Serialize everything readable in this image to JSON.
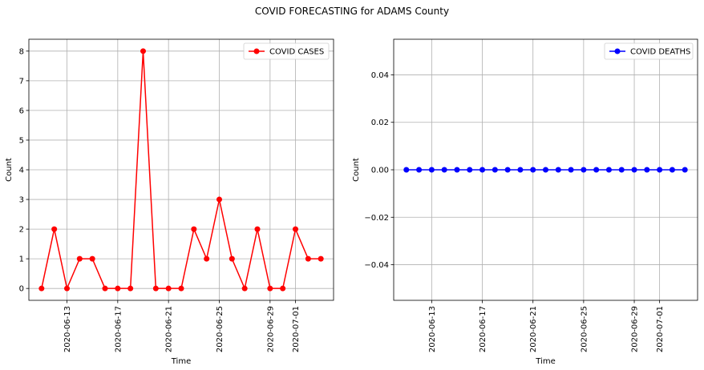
{
  "figure": {
    "title": "COVID FORECASTING for ADAMS County"
  },
  "chart_data": [
    {
      "type": "line",
      "xlabel": "Time",
      "ylabel": "Count",
      "x": [
        "2020-06-11",
        "2020-06-12",
        "2020-06-13",
        "2020-06-14",
        "2020-06-15",
        "2020-06-16",
        "2020-06-17",
        "2020-06-18",
        "2020-06-19",
        "2020-06-20",
        "2020-06-21",
        "2020-06-22",
        "2020-06-23",
        "2020-06-24",
        "2020-06-25",
        "2020-06-26",
        "2020-06-27",
        "2020-06-28",
        "2020-06-29",
        "2020-06-30",
        "2020-07-01",
        "2020-07-02",
        "2020-07-03"
      ],
      "series": [
        {
          "name": "COVID CASES",
          "color": "#ff0000",
          "values": [
            0,
            2,
            0,
            1,
            1,
            0,
            0,
            0,
            8,
            0,
            0,
            0,
            2,
            1,
            3,
            1,
            0,
            2,
            0,
            0,
            2,
            1,
            1
          ]
        }
      ],
      "xticks": [
        "2020-06-13",
        "2020-06-17",
        "2020-06-21",
        "2020-06-25",
        "2020-06-29",
        "2020-07-01"
      ],
      "xlim": [
        "2020-06-10",
        "2020-07-04"
      ],
      "yticks": [
        0,
        1,
        2,
        3,
        4,
        5,
        6,
        7,
        8
      ],
      "ylim": [
        -0.4,
        8.4
      ],
      "grid": true,
      "legend": "upper-right"
    },
    {
      "type": "line",
      "xlabel": "Time",
      "ylabel": "Count",
      "x": [
        "2020-06-11",
        "2020-06-12",
        "2020-06-13",
        "2020-06-14",
        "2020-06-15",
        "2020-06-16",
        "2020-06-17",
        "2020-06-18",
        "2020-06-19",
        "2020-06-20",
        "2020-06-21",
        "2020-06-22",
        "2020-06-23",
        "2020-06-24",
        "2020-06-25",
        "2020-06-26",
        "2020-06-27",
        "2020-06-28",
        "2020-06-29",
        "2020-06-30",
        "2020-07-01",
        "2020-07-02",
        "2020-07-03"
      ],
      "series": [
        {
          "name": "COVID DEATHS",
          "color": "#0000ff",
          "values": [
            0,
            0,
            0,
            0,
            0,
            0,
            0,
            0,
            0,
            0,
            0,
            0,
            0,
            0,
            0,
            0,
            0,
            0,
            0,
            0,
            0,
            0,
            0
          ]
        }
      ],
      "xticks": [
        "2020-06-13",
        "2020-06-17",
        "2020-06-21",
        "2020-06-25",
        "2020-06-29",
        "2020-07-01"
      ],
      "xlim": [
        "2020-06-10",
        "2020-07-04"
      ],
      "yticks": [
        -0.04,
        -0.02,
        0.0,
        0.02,
        0.04
      ],
      "ytick_labels": [
        "−0.04",
        "−0.02",
        "0.00",
        "0.02",
        "0.04"
      ],
      "ylim": [
        -0.055,
        0.055
      ],
      "grid": true,
      "legend": "upper-right"
    }
  ]
}
